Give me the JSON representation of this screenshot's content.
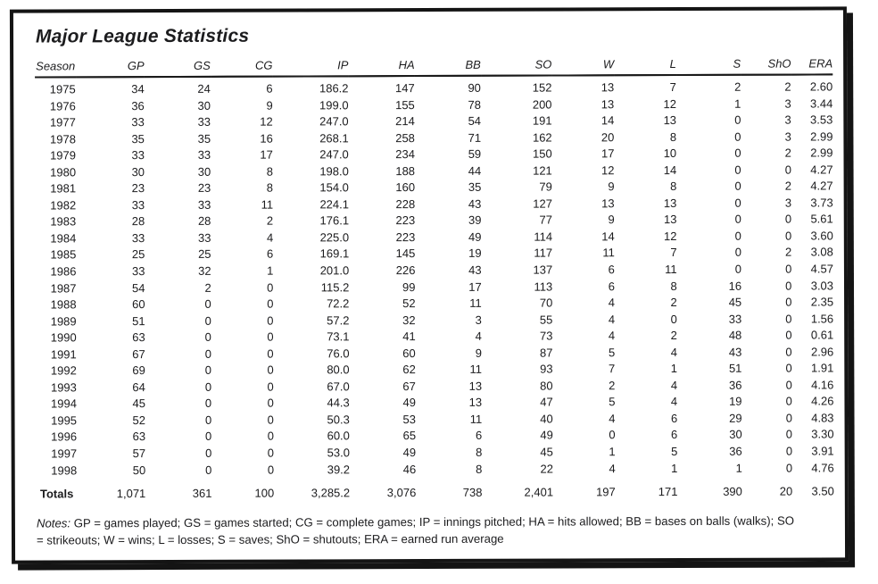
{
  "title": "Major League Statistics",
  "table": {
    "columns": [
      "Season",
      "GP",
      "GS",
      "CG",
      "IP",
      "HA",
      "BB",
      "SO",
      "W",
      "L",
      "S",
      "ShO",
      "ERA"
    ],
    "rows": [
      [
        "1975",
        "34",
        "24",
        "6",
        "186.2",
        "147",
        "90",
        "152",
        "13",
        "7",
        "2",
        "2",
        "2.60"
      ],
      [
        "1976",
        "36",
        "30",
        "9",
        "199.0",
        "155",
        "78",
        "200",
        "13",
        "12",
        "1",
        "3",
        "3.44"
      ],
      [
        "1977",
        "33",
        "33",
        "12",
        "247.0",
        "214",
        "54",
        "191",
        "14",
        "13",
        "0",
        "3",
        "3.53"
      ],
      [
        "1978",
        "35",
        "35",
        "16",
        "268.1",
        "258",
        "71",
        "162",
        "20",
        "8",
        "0",
        "3",
        "2.99"
      ],
      [
        "1979",
        "33",
        "33",
        "17",
        "247.0",
        "234",
        "59",
        "150",
        "17",
        "10",
        "0",
        "2",
        "2.99"
      ],
      [
        "1980",
        "30",
        "30",
        "8",
        "198.0",
        "188",
        "44",
        "121",
        "12",
        "14",
        "0",
        "0",
        "4.27"
      ],
      [
        "1981",
        "23",
        "23",
        "8",
        "154.0",
        "160",
        "35",
        "79",
        "9",
        "8",
        "0",
        "2",
        "4.27"
      ],
      [
        "1982",
        "33",
        "33",
        "11",
        "224.1",
        "228",
        "43",
        "127",
        "13",
        "13",
        "0",
        "3",
        "3.73"
      ],
      [
        "1983",
        "28",
        "28",
        "2",
        "176.1",
        "223",
        "39",
        "77",
        "9",
        "13",
        "0",
        "0",
        "5.61"
      ],
      [
        "1984",
        "33",
        "33",
        "4",
        "225.0",
        "223",
        "49",
        "114",
        "14",
        "12",
        "0",
        "0",
        "3.60"
      ],
      [
        "1985",
        "25",
        "25",
        "6",
        "169.1",
        "145",
        "19",
        "117",
        "11",
        "7",
        "0",
        "2",
        "3.08"
      ],
      [
        "1986",
        "33",
        "32",
        "1",
        "201.0",
        "226",
        "43",
        "137",
        "6",
        "11",
        "0",
        "0",
        "4.57"
      ],
      [
        "1987",
        "54",
        "2",
        "0",
        "115.2",
        "99",
        "17",
        "113",
        "6",
        "8",
        "16",
        "0",
        "3.03"
      ],
      [
        "1988",
        "60",
        "0",
        "0",
        "72.2",
        "52",
        "11",
        "70",
        "4",
        "2",
        "45",
        "0",
        "2.35"
      ],
      [
        "1989",
        "51",
        "0",
        "0",
        "57.2",
        "32",
        "3",
        "55",
        "4",
        "0",
        "33",
        "0",
        "1.56"
      ],
      [
        "1990",
        "63",
        "0",
        "0",
        "73.1",
        "41",
        "4",
        "73",
        "4",
        "2",
        "48",
        "0",
        "0.61"
      ],
      [
        "1991",
        "67",
        "0",
        "0",
        "76.0",
        "60",
        "9",
        "87",
        "5",
        "4",
        "43",
        "0",
        "2.96"
      ],
      [
        "1992",
        "69",
        "0",
        "0",
        "80.0",
        "62",
        "11",
        "93",
        "7",
        "1",
        "51",
        "0",
        "1.91"
      ],
      [
        "1993",
        "64",
        "0",
        "0",
        "67.0",
        "67",
        "13",
        "80",
        "2",
        "4",
        "36",
        "0",
        "4.16"
      ],
      [
        "1994",
        "45",
        "0",
        "0",
        "44.3",
        "49",
        "13",
        "47",
        "5",
        "4",
        "19",
        "0",
        "4.26"
      ],
      [
        "1995",
        "52",
        "0",
        "0",
        "50.3",
        "53",
        "11",
        "40",
        "4",
        "6",
        "29",
        "0",
        "4.83"
      ],
      [
        "1996",
        "63",
        "0",
        "0",
        "60.0",
        "65",
        "6",
        "49",
        "0",
        "6",
        "30",
        "0",
        "3.30"
      ],
      [
        "1997",
        "57",
        "0",
        "0",
        "53.0",
        "49",
        "8",
        "45",
        "1",
        "5",
        "36",
        "0",
        "3.91"
      ],
      [
        "1998",
        "50",
        "0",
        "0",
        "39.2",
        "46",
        "8",
        "22",
        "4",
        "1",
        "1",
        "0",
        "4.76"
      ]
    ],
    "totals": [
      "Totals",
      "1,071",
      "361",
      "100",
      "3,285.2",
      "3,076",
      "738",
      "2,401",
      "197",
      "171",
      "390",
      "20",
      "3.50"
    ],
    "column_widths_pct": [
      5.2,
      8.5,
      8.3,
      7.8,
      9.5,
      8.3,
      8.3,
      8.9,
      7.8,
      7.8,
      8.1,
      6.3,
      5.2
    ]
  },
  "notes": {
    "label": "Notes:",
    "text": " GP = games played; GS = games started; CG = complete games; IP = innings pitched; HA = hits allowed; BB = bases on balls (walks); SO = strikeouts; W = wins; L = losses; S = saves; ShO = shutouts; ERA = earned run average"
  },
  "colors": {
    "frame": "#141414",
    "text": "#1c1c1e",
    "background": "#ffffff"
  }
}
